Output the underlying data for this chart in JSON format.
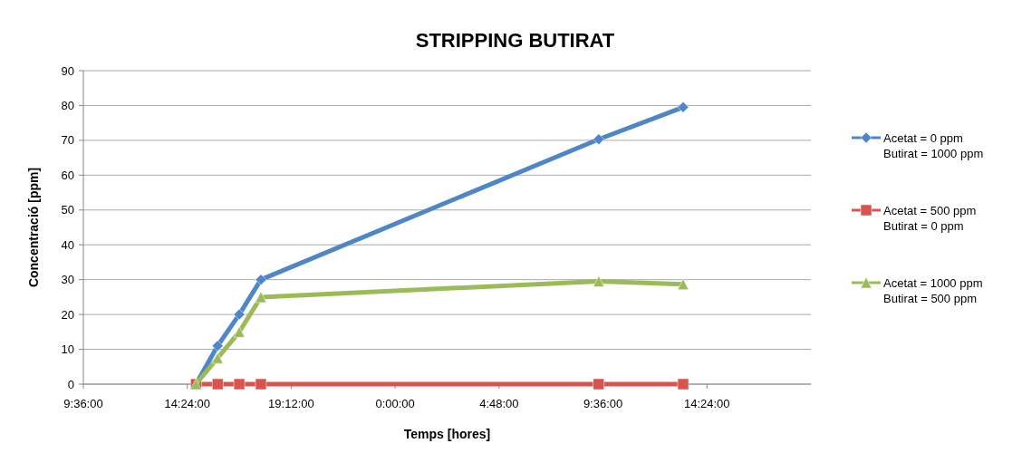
{
  "chart_data": {
    "type": "line",
    "title": "STRIPPING BUTIRAT",
    "xlabel": "Temps [hores]",
    "ylabel": "Concentració [ppm]",
    "x": [
      "2000-01-01T14:48",
      "2000-01-01T15:48",
      "2000-01-01T16:48",
      "2000-01-01T17:48",
      "2000-01-02T09:24",
      "2000-01-02T13:18"
    ],
    "series": [
      {
        "name": "Acetat = 0 ppm\nButirat = 1000 ppm",
        "color": "#4f86c6",
        "marker": "diamond",
        "values": [
          0,
          11,
          20,
          30,
          70.3,
          79.5
        ]
      },
      {
        "name": "Acetat = 500 ppm\nButirat = 0 ppm",
        "color": "#d9534f",
        "marker": "square",
        "values": [
          0,
          0,
          0,
          0,
          0,
          0
        ]
      },
      {
        "name": "Acetat = 1000 ppm\nButirat = 500 ppm",
        "color": "#9bbb59",
        "marker": "triangle",
        "values": [
          0,
          7.5,
          15,
          25,
          29.5,
          28.7
        ]
      }
    ],
    "xlim": [
      "2000-01-01T09:36",
      "2000-01-02T19:12"
    ],
    "xticks": [
      {
        "value": "2000-01-01T09:36",
        "label": "9:36:00"
      },
      {
        "value": "2000-01-01T14:24",
        "label": "14:24:00"
      },
      {
        "value": "2000-01-01T19:12",
        "label": "19:12:00"
      },
      {
        "value": "2000-01-02T00:00",
        "label": "0:00:00"
      },
      {
        "value": "2000-01-02T04:48",
        "label": "4:48:00"
      },
      {
        "value": "2000-01-02T09:36",
        "label": "9:36:00"
      },
      {
        "value": "2000-01-02T14:24",
        "label": "14:24:00"
      }
    ],
    "ylim": [
      0,
      90
    ],
    "yticks": [
      0,
      10,
      20,
      30,
      40,
      50,
      60,
      70,
      80,
      90
    ],
    "grid": "y",
    "legend": "right",
    "line_style": "solid"
  }
}
